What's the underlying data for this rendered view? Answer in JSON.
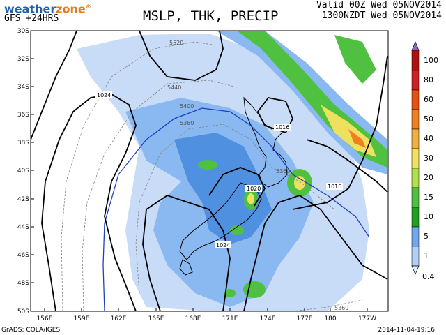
{
  "header": {
    "brand_part1": "weather",
    "brand_part2": "zone",
    "brand_mark": "®",
    "model_label": "GFS  +24HRS",
    "title": "MSLP, THK, PRECIP",
    "valid_line1": "Valid 00Z Wed 05NOV2014",
    "valid_line2": "1300NZDT Wed 05NOV2014"
  },
  "footer": {
    "credit": "GrADS: COLA/IGES",
    "timestamp": "2014-11-04-19:16"
  },
  "axes": {
    "lat_labels": [
      "30S",
      "32S",
      "34S",
      "36S",
      "38S",
      "40S",
      "42S",
      "44S",
      "46S",
      "48S",
      "50S"
    ],
    "lon_labels": [
      "156E",
      "159E",
      "162E",
      "165E",
      "168E",
      "171E",
      "174E",
      "177E",
      "180",
      "177W"
    ]
  },
  "isobar_labels": [
    "1024",
    "1016",
    "1020",
    "1016",
    "1024"
  ],
  "thickness_labels": [
    "5520",
    "5440",
    "5400",
    "5360",
    "5360",
    "5360"
  ],
  "colorbar": {
    "levels": [
      "100",
      "80",
      "60",
      "50",
      "40",
      "30",
      "20",
      "15",
      "10",
      "5",
      "1",
      "0.4"
    ],
    "colors": [
      "#9060d0",
      "#b01010",
      "#d02020",
      "#e85010",
      "#f08020",
      "#f0b040",
      "#f0e060",
      "#b0e050",
      "#50c040",
      "#20a020",
      "#70a8f0",
      "#b0d0f8",
      "#e0f0ff"
    ]
  }
}
